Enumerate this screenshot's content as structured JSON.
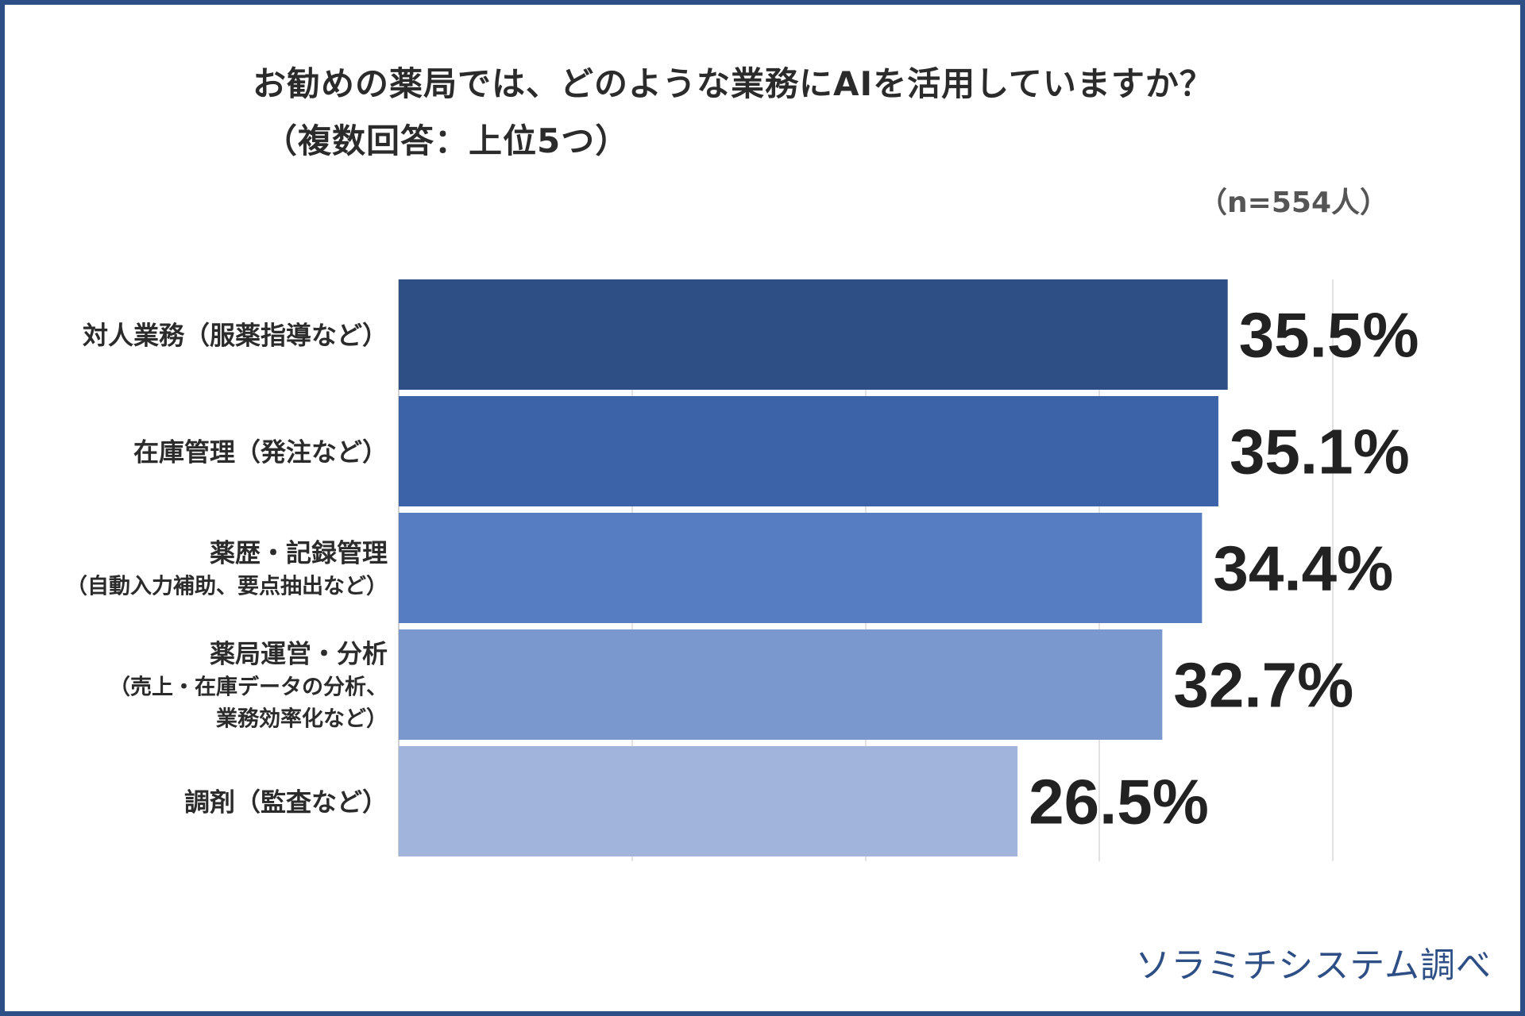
{
  "title_line1": "お勧めの薬局では、どのような業務にAIを活用していますか？",
  "title_line2": "（複数回答：上位5つ）",
  "sample_size": "（n=554人）",
  "source": "ソラミチシステム調べ",
  "chart_data": {
    "type": "bar",
    "orientation": "horizontal",
    "title": "お勧めの薬局では、どのような業務にAIを活用していますか？（複数回答：上位5つ）",
    "categories": [
      [
        "対人業務（服薬指導など）"
      ],
      [
        "在庫管理（発注など）"
      ],
      [
        "薬歴・記録管理",
        "（自動入力補助、要点抽出など）"
      ],
      [
        "薬局運営・分析",
        "（売上・在庫データの分析、",
        "業務効率化など）"
      ],
      [
        "調剤（監査など）"
      ]
    ],
    "values": [
      35.5,
      35.1,
      34.4,
      32.7,
      26.5
    ],
    "value_labels": [
      "35.5%",
      "35.1%",
      "34.4%",
      "32.7%",
      "26.5%"
    ],
    "colors": [
      "#2e4f86",
      "#3c63a8",
      "#567dc2",
      "#7a98cd",
      "#a0b4dc"
    ],
    "xlim": [
      0,
      40
    ],
    "grid": true,
    "xlabel": "",
    "ylabel": ""
  }
}
